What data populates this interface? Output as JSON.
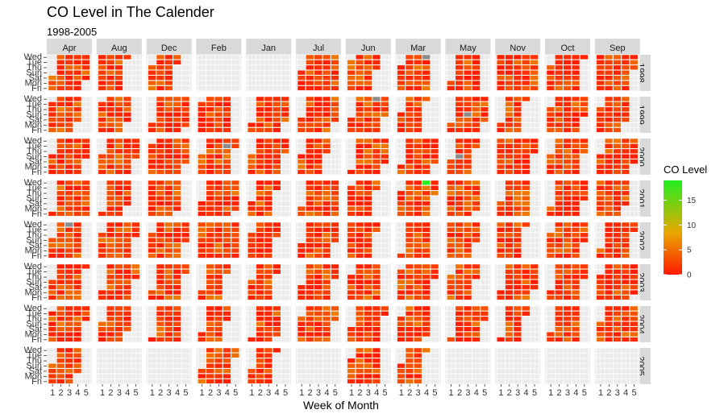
{
  "chart_data": {
    "type": "heatmap",
    "title": "CO Level in The Calender",
    "subtitle": "1998-2005",
    "xlabel": "Week of Month",
    "ylabel": "",
    "columns": [
      "Apr",
      "Aug",
      "Dec",
      "Feb",
      "Jan",
      "Jul",
      "Jun",
      "Mar",
      "May",
      "Nov",
      "Oct",
      "Sep"
    ],
    "rows": [
      "1998",
      "1999",
      "2000",
      "2001",
      "2002",
      "2003",
      "2004",
      "2005"
    ],
    "x_ticks": [
      "1",
      "2",
      "3",
      "4",
      "5"
    ],
    "y_ticks": [
      "Wed",
      "Tue",
      "Thu",
      "Sun",
      "Sat",
      "Mon",
      "Fri"
    ],
    "legend": {
      "title": "CO Level",
      "ticks": [
        0,
        5,
        10,
        15
      ],
      "min": 0,
      "max": 19,
      "low_color": "#ff1a00",
      "mid_color": "#e8a800",
      "high_color": "#22ee22",
      "na_color": "#8c8c8c"
    },
    "panel_bg": "#ebebeb",
    "strip_bg": "#d9d9d9",
    "present": [
      [
        1,
        1,
        1,
        0,
        0,
        1,
        1,
        1,
        1,
        1,
        1,
        1
      ],
      [
        1,
        1,
        1,
        1,
        1,
        1,
        1,
        1,
        1,
        1,
        1,
        1
      ],
      [
        1,
        1,
        1,
        1,
        1,
        1,
        1,
        1,
        1,
        1,
        1,
        1
      ],
      [
        1,
        1,
        1,
        1,
        1,
        1,
        1,
        1,
        1,
        1,
        1,
        1
      ],
      [
        1,
        1,
        1,
        1,
        1,
        1,
        1,
        1,
        1,
        1,
        1,
        1
      ],
      [
        1,
        1,
        1,
        1,
        1,
        1,
        1,
        1,
        1,
        1,
        1,
        1
      ],
      [
        1,
        1,
        1,
        1,
        1,
        1,
        1,
        1,
        1,
        1,
        1,
        1
      ],
      [
        1,
        0,
        0,
        1,
        1,
        0,
        1,
        1,
        0,
        0,
        0,
        0
      ]
    ],
    "notable_cells": [
      {
        "year": "1998",
        "month": "Mar",
        "week": 4,
        "day": "Wed",
        "value": null
      },
      {
        "year": "1998",
        "month": "Aug",
        "week": 4,
        "day": "Thu",
        "value": null
      },
      {
        "year": "1999",
        "month": "Jun",
        "week": 4,
        "day": "Wed",
        "value": null
      },
      {
        "year": "1999",
        "month": "May",
        "week": 3,
        "day": "Sun",
        "value": null
      },
      {
        "year": "2000",
        "month": "Feb",
        "week": 4,
        "day": "Tue",
        "value": null
      },
      {
        "year": "2000",
        "month": "May",
        "week": 2,
        "day": "Sun",
        "value": null
      },
      {
        "year": "2001",
        "month": "Mar",
        "week": 4,
        "day": "Wed",
        "value": 19
      },
      {
        "year": "2001",
        "month": "Jul",
        "week": 1,
        "day": "Thu",
        "value": null
      },
      {
        "year": "2002",
        "month": "Apr",
        "week": 3,
        "day": "Wed",
        "value": null
      },
      {
        "year": "2003",
        "month": "Nov",
        "week": 1,
        "day": "Sat",
        "value": null
      },
      {
        "year": "2004",
        "month": "Jun",
        "week": 1,
        "day": "Tue",
        "value": null
      },
      {
        "year": "2004",
        "month": "May",
        "week": 5,
        "day": "Mon",
        "value": null
      }
    ]
  }
}
